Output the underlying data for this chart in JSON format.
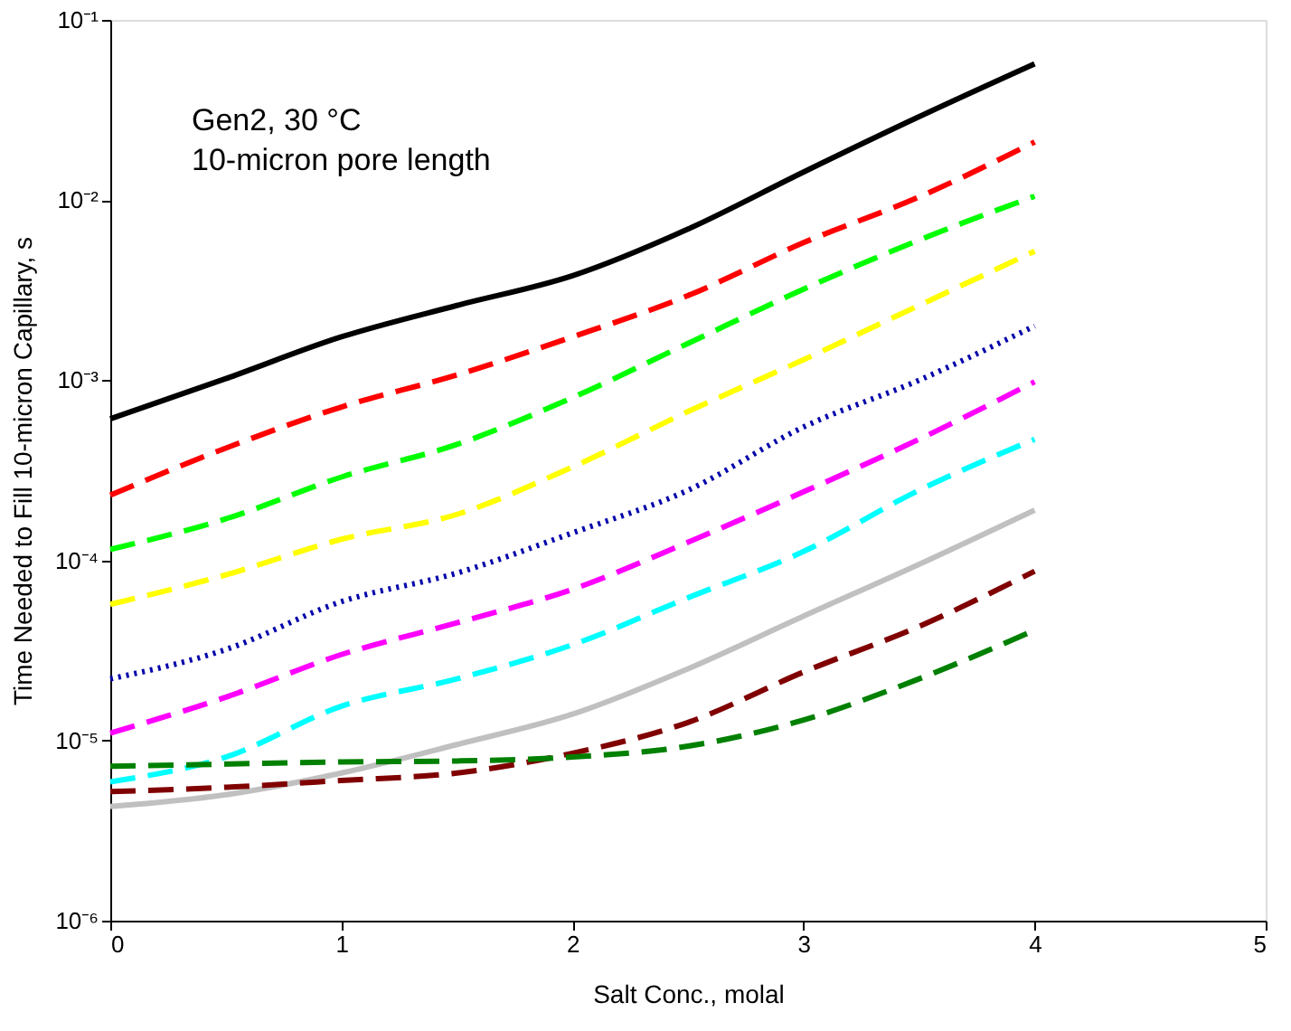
{
  "chart_data": {
    "type": "line",
    "xlabel": "Salt Conc., molal",
    "ylabel": "Time Needed to Fill 10-micron Capillary, s",
    "annotations": [
      "Gen2, 30 °C",
      "10-micron pore length"
    ],
    "x": [
      0,
      0.5,
      1,
      1.5,
      2,
      2.5,
      3,
      3.5,
      4
    ],
    "series": [
      {
        "color": "#000000",
        "line_style": "solid",
        "values": [
          0.00061,
          0.00102,
          0.00174,
          0.0026,
          0.0038,
          0.0069,
          0.0143,
          0.029,
          0.057
        ]
      },
      {
        "color": "#ff0000",
        "line_style": "dashed",
        "values": [
          0.00023,
          0.00042,
          0.00071,
          0.00107,
          0.00174,
          0.00295,
          0.0058,
          0.0104,
          0.021
        ]
      },
      {
        "color": "#00ff00",
        "line_style": "dashed",
        "values": [
          0.000115,
          0.00017,
          0.00029,
          0.00044,
          0.0008,
          0.0016,
          0.0032,
          0.006,
          0.0105
        ]
      },
      {
        "color": "#ffff00",
        "line_style": "dashed",
        "values": [
          5.7e-05,
          8.3e-05,
          0.000131,
          0.00018,
          0.00033,
          0.00067,
          0.0013,
          0.0026,
          0.0052
        ]
      },
      {
        "color": "#0000aa",
        "line_style": "dotted",
        "values": [
          2.2e-05,
          3.2e-05,
          5.9e-05,
          8.5e-05,
          0.000142,
          0.000245,
          0.00055,
          0.001,
          0.002
        ]
      },
      {
        "color": "#ff00ff",
        "line_style": "dashed",
        "values": [
          1.1e-05,
          1.74e-05,
          3e-05,
          4.5e-05,
          6.9e-05,
          0.000126,
          0.00024,
          0.00047,
          0.00098
        ]
      },
      {
        "color": "#00ffff",
        "line_style": "dashed",
        "values": [
          5.9e-06,
          8.1e-06,
          1.55e-05,
          2.2e-05,
          3.4e-05,
          6.2e-05,
          0.000112,
          0.000245,
          0.00047
        ]
      },
      {
        "color": "#c0c0c0",
        "line_style": "solid",
        "values": [
          4.3e-06,
          5e-06,
          6.6e-06,
          9.5e-06,
          1.4e-05,
          2.5e-05,
          4.9e-05,
          9.5e-05,
          0.00019
        ]
      },
      {
        "color": "#800000",
        "line_style": "dashed",
        "values": [
          5.2e-06,
          5.5e-06,
          6e-06,
          6.6e-06,
          8.5e-06,
          1.26e-05,
          2.4e-05,
          4.3e-05,
          8.7e-05
        ]
      },
      {
        "color": "#008000",
        "line_style": "dashed",
        "values": [
          7.2e-06,
          7.4e-06,
          7.6e-06,
          7.7e-06,
          8.1e-06,
          9.3e-06,
          1.3e-05,
          2.2e-05,
          4.1e-05
        ]
      }
    ],
    "xlim": [
      0,
      5
    ],
    "xticks": [
      0,
      1,
      2,
      3,
      4,
      5
    ],
    "ylim": [
      1e-06,
      0.1
    ],
    "log": "y",
    "yticks": [
      {
        "value": 1e-06,
        "label": "10⁻⁶"
      },
      {
        "value": 1e-05,
        "label": "10⁻⁵"
      },
      {
        "value": 0.0001,
        "label": "10⁻⁴"
      },
      {
        "value": 0.001,
        "label": "10⁻³"
      },
      {
        "value": 0.01,
        "label": "10⁻²"
      },
      {
        "value": 0.1,
        "label": "10⁻¹"
      }
    ],
    "grid": false,
    "legend": false,
    "marker": "none"
  }
}
